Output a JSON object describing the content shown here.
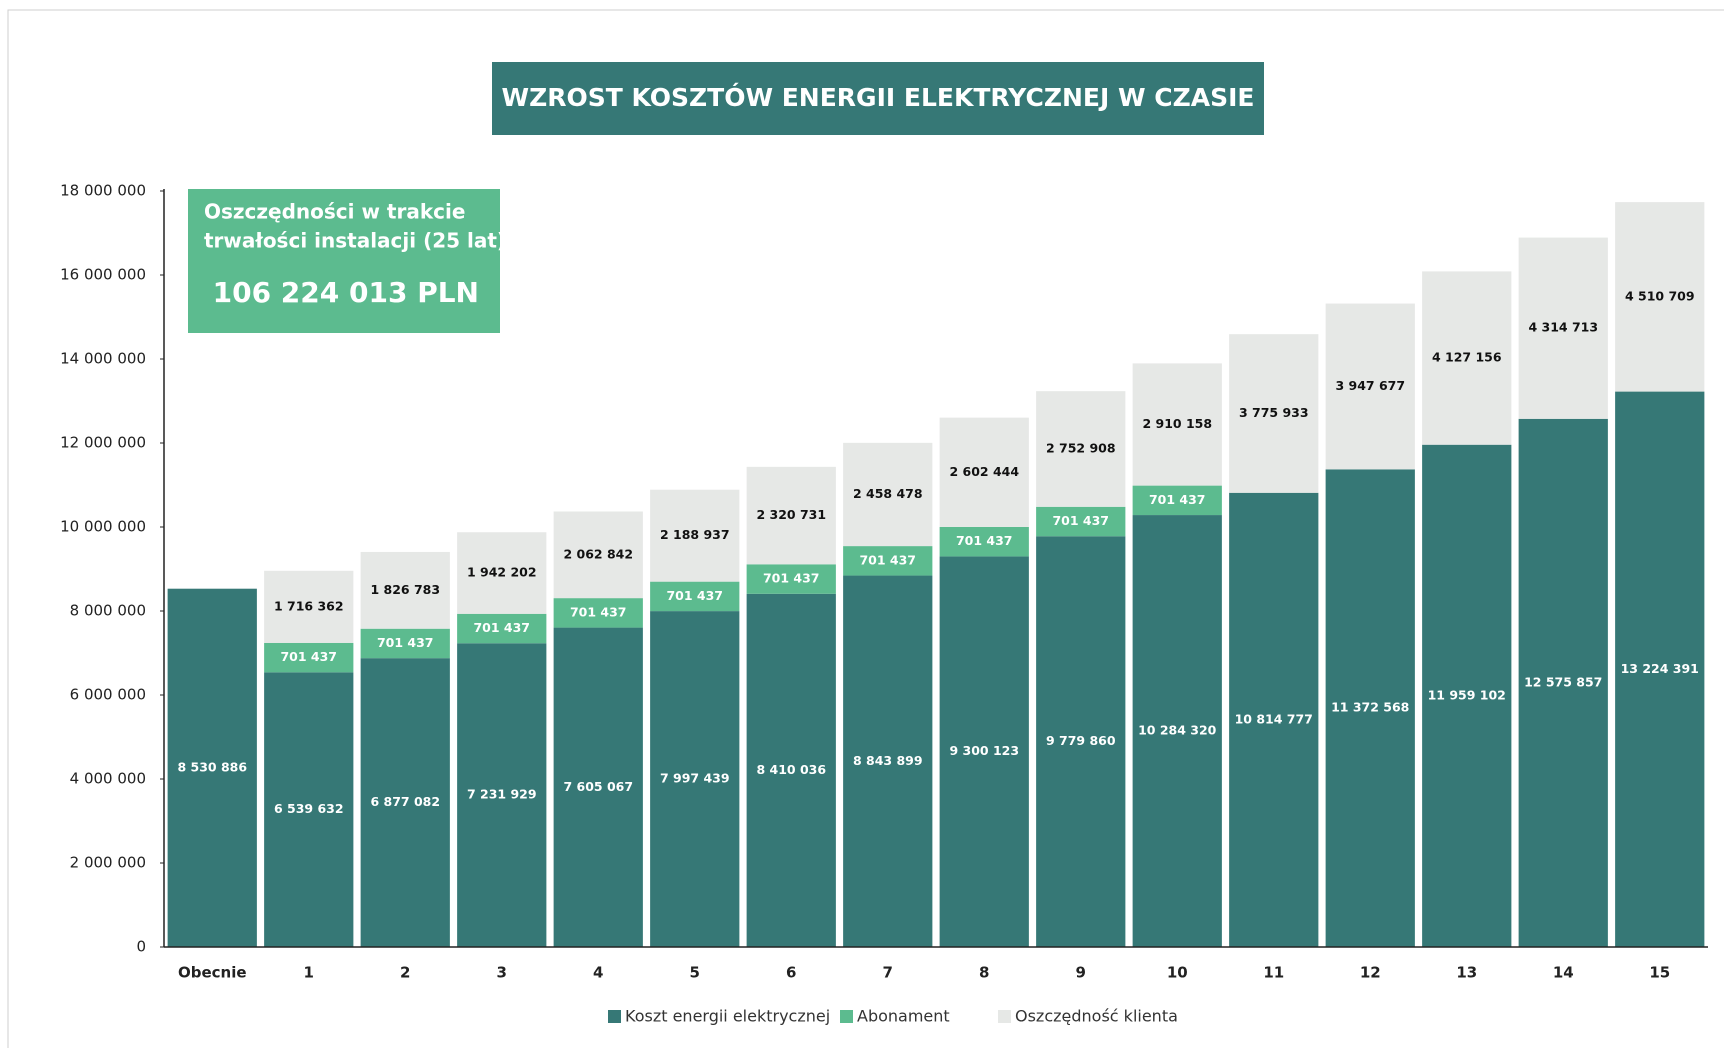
{
  "chart_data": {
    "type": "stacked_bar",
    "title": "WZROST KOSZTÓW ENERGII ELEKTRYCZNEJ W CZASIE",
    "annotation": {
      "lines": [
        "Oszczędności w trakcie",
        "trwałości instalacji (25 lat):"
      ],
      "value": "106 224 013 PLN"
    },
    "categories": [
      "Obecnie",
      "1",
      "2",
      "3",
      "4",
      "5",
      "6",
      "7",
      "8",
      "9",
      "10",
      "11",
      "12",
      "13",
      "14",
      "15"
    ],
    "series": [
      {
        "name": "Koszt energii elektrycznej",
        "color": "#367876",
        "label_color": "#ffffff",
        "values": [
          8530886,
          6539632,
          6877082,
          7231929,
          7605067,
          7997439,
          8410036,
          8843899,
          9300123,
          9779860,
          10284320,
          10814777,
          11372568,
          11959102,
          12575857,
          13224391
        ],
        "value_labels": [
          "8 530 886",
          "6 539 632",
          "6 877 082",
          "7 231 929",
          "7 605 067",
          "7 997 439",
          "8 410 036",
          "8 843 899",
          "9 300 123",
          "9 779 860",
          "10 284 320",
          "10 814 777",
          "11 372 568",
          "11 959 102",
          "12 575 857",
          "13 224 391"
        ]
      },
      {
        "name": "Abonament",
        "color": "#5cbb8f",
        "label_color": "#ffffff",
        "values": [
          null,
          701437,
          701437,
          701437,
          701437,
          701437,
          701437,
          701437,
          701437,
          701437,
          701437,
          null,
          null,
          null,
          null,
          null
        ],
        "value_labels": [
          null,
          "701 437",
          "701 437",
          "701 437",
          "701 437",
          "701 437",
          "701 437",
          "701 437",
          "701 437",
          "701 437",
          "701 437",
          null,
          null,
          null,
          null,
          null
        ]
      },
      {
        "name": "Oszczędność klienta",
        "color": "#e6e8e6",
        "label_color": "#111111",
        "values": [
          null,
          1716362,
          1826783,
          1942202,
          2062842,
          2188937,
          2320731,
          2458478,
          2602444,
          2752908,
          2910158,
          3775933,
          3947677,
          4127156,
          4314713,
          4510709
        ],
        "value_labels": [
          null,
          "1 716 362",
          "1 826 783",
          "1 942 202",
          "2 062 842",
          "2 188 937",
          "2 320 731",
          "2 458 478",
          "2 602 444",
          "2 752 908",
          "2 910 158",
          "3 775 933",
          "3 947 677",
          "4 127 156",
          "4 314 713",
          "4 510 709"
        ]
      }
    ],
    "ylim": [
      0,
      18000000
    ],
    "yticks": [
      0,
      {
        "value": 2000000,
        "label": "2 000 000"
      },
      {
        "value": 4000000,
        "label": "4 000 000"
      },
      {
        "value": 6000000,
        "label": "6 000 000"
      },
      {
        "value": 8000000,
        "label": "8 000 000"
      },
      {
        "value": 10000000,
        "label": "10 000 000"
      },
      {
        "value": 12000000,
        "label": "12 000 000"
      },
      {
        "value": 14000000,
        "label": "14 000 000"
      },
      {
        "value": 16000000,
        "label": "16 000 000"
      },
      {
        "value": 18000000,
        "label": "18 000 000"
      }
    ],
    "grid": false,
    "legend": "bottom"
  }
}
